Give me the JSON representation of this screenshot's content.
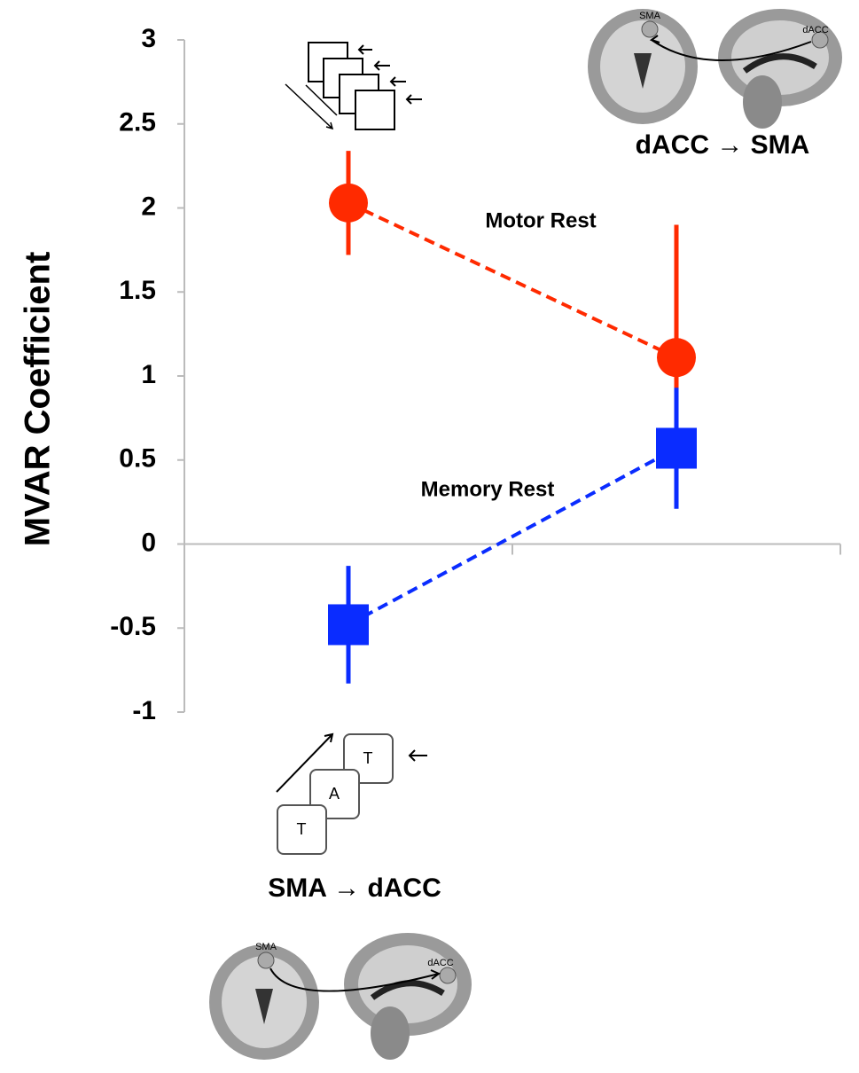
{
  "chart_data": {
    "type": "line",
    "y_label": "MVAR Coefficient",
    "categories": [
      null,
      null
    ],
    "series": [
      {
        "name": "Motor Rest",
        "color": "#ff2a00",
        "marker": "circle",
        "values": [
          2.03,
          1.11
        ],
        "errors": [
          0.31,
          0.79
        ]
      },
      {
        "name": "Memory Rest",
        "color": "#0a2cff",
        "marker": "square",
        "values": [
          -0.48,
          0.57
        ],
        "errors": [
          0.35,
          0.36
        ]
      }
    ],
    "ylim": [
      -1,
      3
    ],
    "yticks": [
      -1,
      -0.5,
      0,
      0.5,
      1,
      1.5,
      2,
      2.5,
      3
    ],
    "line_style": "dashed",
    "annotations": [
      "dACC → SMA",
      "SMA → dACC"
    ],
    "icon_texts": [
      "SMA",
      "dACC",
      "SMA",
      "dACC",
      "T",
      "A",
      "T"
    ]
  }
}
